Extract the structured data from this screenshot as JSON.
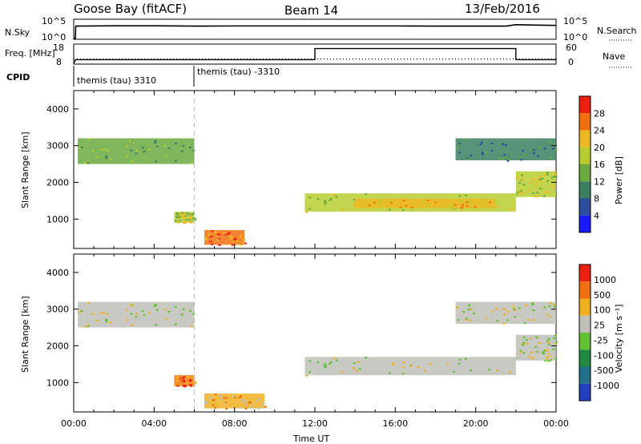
{
  "header": {
    "station": "Goose Bay (fitACF)",
    "beam": "Beam 14",
    "date": "13/Feb/2016"
  },
  "chart_data": [
    {
      "type": "line",
      "name": "noise-panel",
      "left_label": "N.Sky",
      "left_ticks": [
        "10^5",
        "10^0"
      ],
      "right_label": "N.Search",
      "right_ticks": [
        "10^5",
        "10^0"
      ],
      "series": [
        {
          "name": "N.Sky",
          "x": [
            0,
            0.08,
            0.1,
            2,
            4,
            6,
            8,
            10,
            12,
            14,
            16,
            18,
            20,
            21.5,
            22,
            23,
            24
          ],
          "y": [
            0,
            0,
            3.5,
            3.6,
            3.6,
            3.5,
            3.55,
            3.55,
            3.55,
            3.55,
            3.55,
            3.5,
            3.5,
            3.5,
            3.9,
            3.8,
            3.7
          ]
        }
      ],
      "ylim": [
        0,
        5
      ]
    },
    {
      "type": "line",
      "name": "frequency-panel",
      "left_label": "Freq. [MHz]",
      "left_ticks": [
        "18",
        "8"
      ],
      "right_label": "Nave",
      "right_ticks": [
        "60",
        "0"
      ],
      "series": [
        {
          "name": "Freq.",
          "x": [
            0,
            0.1,
            12,
            12,
            22,
            22,
            24
          ],
          "y": [
            8,
            10,
            10,
            16,
            16,
            10,
            10
          ]
        },
        {
          "name": "Nave",
          "x": [
            0,
            24
          ],
          "y": [
            14,
            14
          ]
        }
      ]
    },
    {
      "type": "table",
      "name": "cpid-strip",
      "label": "CPID",
      "segments": [
        {
          "start": 0,
          "end": 6,
          "text": "themis (tau) 3310"
        },
        {
          "start": 6,
          "end": 24,
          "text": "themis (tau) -3310"
        }
      ]
    },
    {
      "type": "heatmap",
      "name": "power-panel",
      "ylabel": "Slant Range [km]",
      "ylim": [
        200,
        4500
      ],
      "yticks": [
        1000,
        2000,
        3000,
        4000
      ],
      "colorbar_label": "Power [dB]",
      "colorbar_ticks": [
        "28",
        "24",
        "20",
        "16",
        "12",
        "8",
        "4"
      ],
      "colors": [
        "#1a1aff",
        "#2a4ea0",
        "#3a8060",
        "#6aaa40",
        "#b8cc30",
        "#f0b820",
        "#f07010",
        "#ee2010"
      ],
      "patches": [
        {
          "t0": 0.2,
          "t1": 6.0,
          "r0": 2500,
          "r1": 3200,
          "level": 3
        },
        {
          "t0": 5.0,
          "t1": 6.0,
          "r0": 900,
          "r1": 1200,
          "level": 4
        },
        {
          "t0": 6.5,
          "t1": 8.5,
          "r0": 300,
          "r1": 700,
          "level": 6
        },
        {
          "t0": 11.5,
          "t1": 22.0,
          "r0": 1200,
          "r1": 1700,
          "level": 4
        },
        {
          "t0": 14.0,
          "t1": 21.0,
          "r0": 1300,
          "r1": 1550,
          "level": 5
        },
        {
          "t0": 22.0,
          "t1": 24.0,
          "r0": 1600,
          "r1": 2300,
          "level": 4
        },
        {
          "t0": 19.0,
          "t1": 24.0,
          "r0": 2600,
          "r1": 3200,
          "level": 2
        }
      ]
    },
    {
      "type": "heatmap",
      "name": "velocity-panel",
      "ylabel": "Slant Range [km]",
      "xlabel": "Time UT",
      "ylim": [
        200,
        4500
      ],
      "yticks": [
        1000,
        2000,
        3000,
        4000
      ],
      "xticks": [
        "00:00",
        "04:00",
        "08:00",
        "12:00",
        "16:00",
        "20:00",
        "00:00"
      ],
      "colorbar_label": "Velocity [m s⁻¹]",
      "colorbar_ticks": [
        "1000",
        "500",
        "100",
        "25",
        "-25",
        "-100",
        "-500",
        "-1000"
      ],
      "colors": [
        "#2040c0",
        "#20708a",
        "#208a40",
        "#60c030",
        "#c0c0b8",
        "#f0b020",
        "#f07010",
        "#ee2010"
      ],
      "patches": [
        {
          "t0": 0.2,
          "t1": 6.0,
          "r0": 2500,
          "r1": 3200,
          "level": 4
        },
        {
          "t0": 5.0,
          "t1": 6.0,
          "r0": 900,
          "r1": 1200,
          "level": 6
        },
        {
          "t0": 6.5,
          "t1": 9.5,
          "r0": 300,
          "r1": 700,
          "level": 5
        },
        {
          "t0": 11.5,
          "t1": 22.0,
          "r0": 1200,
          "r1": 1700,
          "level": 4
        },
        {
          "t0": 22.0,
          "t1": 24.0,
          "r0": 1600,
          "r1": 2300,
          "level": 4
        },
        {
          "t0": 19.0,
          "t1": 24.0,
          "r0": 2600,
          "r1": 3200,
          "level": 4
        }
      ]
    }
  ]
}
